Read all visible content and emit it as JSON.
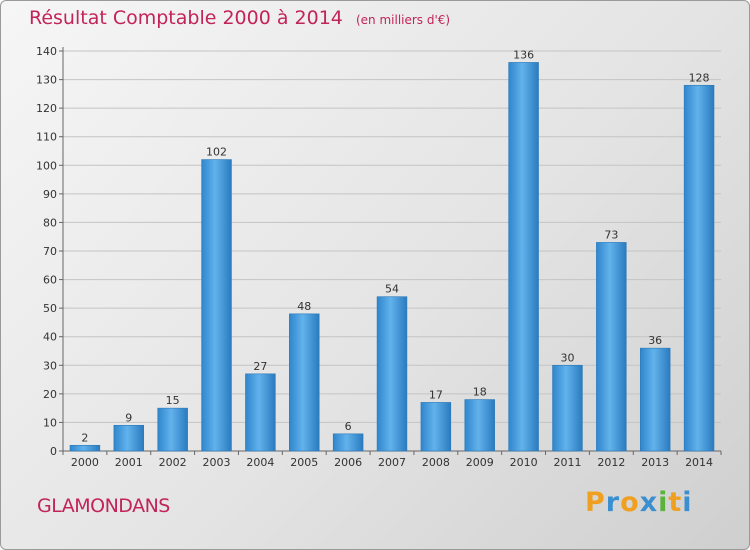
{
  "header": {
    "title": "Résultat Comptable 2000 à 2014",
    "subtitle": "(en milliers d'€)"
  },
  "footer": {
    "commune": "GLAMONDANS",
    "logo_letters": [
      "P",
      "r",
      "o",
      "x",
      "i",
      "t",
      "i"
    ],
    "logo_colors": [
      "#f0a020",
      "#3a8fd0",
      "#f0a020",
      "#3a8fd0",
      "#58b43a",
      "#f0a020",
      "#3a8fd0"
    ]
  },
  "colors": {
    "bar": "#3f97d8",
    "bar_light": "#62b2ec",
    "bar_dark": "#2879bd",
    "accent": "#c2245a"
  },
  "chart_data": {
    "type": "bar",
    "title": "Résultat Comptable 2000 à 2014",
    "subtitle": "(en milliers d'€)",
    "categories": [
      "2000",
      "2001",
      "2002",
      "2003",
      "2004",
      "2005",
      "2006",
      "2007",
      "2008",
      "2009",
      "2010",
      "2011",
      "2012",
      "2013",
      "2014"
    ],
    "values": [
      2,
      9,
      15,
      102,
      27,
      48,
      6,
      54,
      17,
      18,
      136,
      30,
      73,
      36,
      128
    ],
    "ylim": [
      0,
      140
    ],
    "yticks": [
      0,
      10,
      20,
      30,
      40,
      50,
      60,
      70,
      80,
      90,
      100,
      110,
      120,
      130,
      140
    ],
    "xlabel": "",
    "ylabel": "",
    "grid": true
  }
}
